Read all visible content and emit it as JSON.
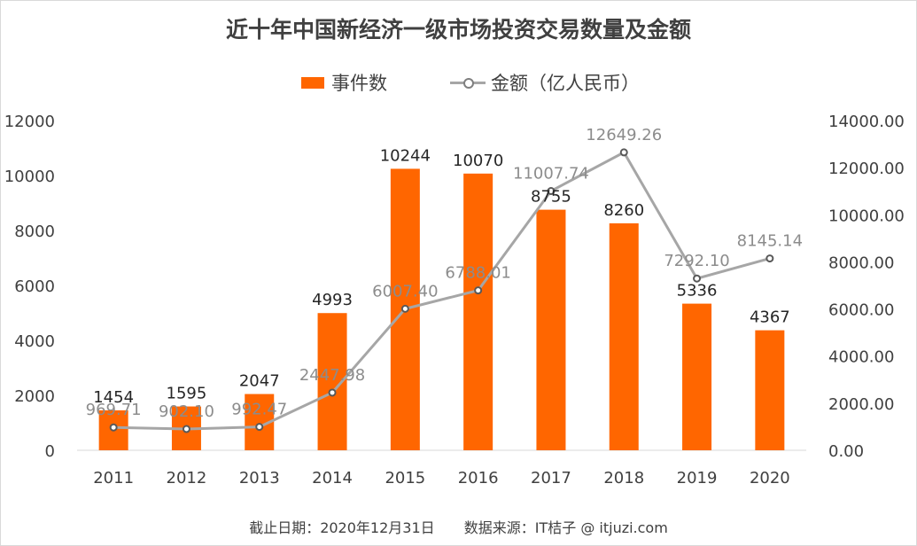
{
  "chart_data": {
    "type": "bar",
    "title": "近十年中国新经济一级市场投资交易数量及金额",
    "categories": [
      "2011",
      "2012",
      "2013",
      "2014",
      "2015",
      "2016",
      "2017",
      "2018",
      "2019",
      "2020"
    ],
    "series": [
      {
        "name": "事件数",
        "type": "bar",
        "axis": "left",
        "color": "#ff6600",
        "values": [
          1454,
          1595,
          2047,
          4993,
          10244,
          10070,
          8755,
          8260,
          5336,
          4367
        ]
      },
      {
        "name": "金额（亿人民币）",
        "type": "line",
        "axis": "right",
        "color": "#a6a6a6",
        "values": [
          969.71,
          902.1,
          992.47,
          2447.98,
          6007.4,
          6788.01,
          11007.74,
          12649.26,
          7292.1,
          8145.14
        ]
      }
    ],
    "ylim_left": [
      0,
      12000
    ],
    "yticks_left": [
      "0",
      "2000",
      "4000",
      "6000",
      "8000",
      "10000",
      "12000"
    ],
    "ylim_right": [
      0,
      14000
    ],
    "yticks_right": [
      "0.00",
      "2000.00",
      "4000.00",
      "6000.00",
      "8000.00",
      "10000.00",
      "12000.00",
      "14000.00"
    ],
    "legend_position": "top-center",
    "grid": false
  },
  "footer": {
    "date_text": "截止日期：2020年12月31日",
    "source_text": "数据来源：IT桔子 @ itjuzi.com"
  }
}
